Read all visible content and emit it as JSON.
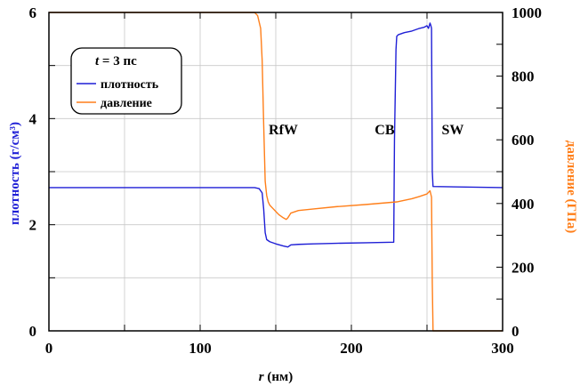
{
  "chart_data": {
    "type": "line",
    "xlabel_var": "r",
    "xlabel_unit": " (нм)",
    "ylabel_left": "плотность (г/см³)",
    "ylabel_right": "давление (ГПа)",
    "xlim": [
      0,
      300
    ],
    "ylim_left": [
      0,
      6
    ],
    "ylim_right": [
      0,
      1000
    ],
    "x_ticks": [
      0,
      100,
      200,
      300
    ],
    "y_left_ticks": [
      0,
      2,
      4,
      6
    ],
    "y_right_ticks": [
      0,
      200,
      400,
      600,
      800,
      1000
    ],
    "grid": true,
    "legend": {
      "placement": "upper-left",
      "title_var": "t",
      "title_rest": " = 3 пс",
      "entries": [
        "плотность",
        "давление"
      ]
    },
    "annotations": [
      {
        "text": "RfW",
        "x": 155,
        "y_left": 3.7
      },
      {
        "text": "CB",
        "x": 222,
        "y_left": 3.7
      },
      {
        "text": "SW",
        "x": 267,
        "y_left": 3.7
      }
    ],
    "series": [
      {
        "name": "плотность",
        "axis": "left",
        "color": "#1f1fd6",
        "x": [
          0,
          136,
          139,
          141,
          142,
          143,
          144,
          146,
          150,
          155,
          158,
          160,
          165,
          175,
          190,
          210,
          228,
          228.5,
          229.5,
          230,
          231,
          235,
          240,
          245,
          248,
          250,
          251,
          252,
          252.5,
          253,
          253.5,
          254,
          300
        ],
        "y": [
          2.7,
          2.7,
          2.68,
          2.6,
          2.3,
          1.85,
          1.72,
          1.68,
          1.64,
          1.6,
          1.58,
          1.62,
          1.63,
          1.64,
          1.65,
          1.66,
          1.67,
          3.6,
          5.3,
          5.55,
          5.58,
          5.62,
          5.65,
          5.7,
          5.72,
          5.75,
          5.7,
          5.8,
          5.76,
          5.7,
          3.0,
          2.72,
          2.7
        ]
      },
      {
        "name": "давление",
        "axis": "right",
        "color": "#ff7f1a",
        "x": [
          0,
          136,
          138,
          140,
          141,
          142,
          143,
          144,
          145,
          146,
          148,
          150,
          152,
          155,
          157,
          158,
          160,
          165,
          175,
          190,
          210,
          230,
          240,
          245,
          250,
          252,
          253,
          253.5,
          254,
          300
        ],
        "y": [
          1000,
          1000,
          990,
          950,
          850,
          650,
          470,
          425,
          405,
          395,
          385,
          375,
          365,
          355,
          350,
          355,
          370,
          378,
          383,
          390,
          397,
          405,
          415,
          422,
          430,
          440,
          420,
          150,
          0,
          0
        ]
      }
    ]
  }
}
